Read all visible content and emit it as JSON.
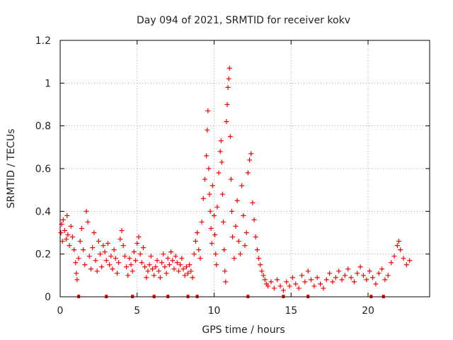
{
  "chart_data": {
    "type": "scatter",
    "title": "Day 094 of 2021, SRMTID for receiver kokv",
    "xlabel": "GPS time / hours",
    "ylabel": "SRMTID / TECUs",
    "xlim": [
      0,
      24
    ],
    "ylim": [
      0,
      1.2
    ],
    "x_ticks": [
      0,
      5,
      10,
      15,
      20
    ],
    "x_tick_labels": [
      "0",
      "5",
      "10",
      "15",
      "20"
    ],
    "y_ticks": [
      0,
      0.2,
      0.4,
      0.6,
      0.8,
      1,
      1.2
    ],
    "y_tick_labels": [
      "0",
      "0.2",
      "0.4",
      "0.6",
      "0.8",
      "1",
      "1.2"
    ],
    "grid": true,
    "marker": "plus",
    "series": [
      {
        "name": "SRMTID",
        "color": "#ff0000",
        "points": [
          [
            0.05,
            0.3
          ],
          [
            0.1,
            0.34
          ],
          [
            0.15,
            0.26
          ],
          [
            0.2,
            0.36
          ],
          [
            0.3,
            0.31
          ],
          [
            0.4,
            0.27
          ],
          [
            0.45,
            0.38
          ],
          [
            0.5,
            0.29
          ],
          [
            0.6,
            0.24
          ],
          [
            0.7,
            0.33
          ],
          [
            0.8,
            0.28
          ],
          [
            0.9,
            0.22
          ],
          [
            1.0,
            0.16
          ],
          [
            1.05,
            0.11
          ],
          [
            1.1,
            0.08
          ],
          [
            1.2,
            0.18
          ],
          [
            1.3,
            0.26
          ],
          [
            1.4,
            0.32
          ],
          [
            1.5,
            0.22
          ],
          [
            1.6,
            0.15
          ],
          [
            1.7,
            0.4
          ],
          [
            1.8,
            0.35
          ],
          [
            1.9,
            0.19
          ],
          [
            2.0,
            0.13
          ],
          [
            2.1,
            0.23
          ],
          [
            2.2,
            0.3
          ],
          [
            2.3,
            0.17
          ],
          [
            2.4,
            0.12
          ],
          [
            2.5,
            0.26
          ],
          [
            2.6,
            0.2
          ],
          [
            2.7,
            0.14
          ],
          [
            2.8,
            0.24
          ],
          [
            2.9,
            0.21
          ],
          [
            3.0,
            0.17
          ],
          [
            3.1,
            0.25
          ],
          [
            3.2,
            0.15
          ],
          [
            3.3,
            0.19
          ],
          [
            3.4,
            0.13
          ],
          [
            3.5,
            0.22
          ],
          [
            3.6,
            0.18
          ],
          [
            3.7,
            0.11
          ],
          [
            3.8,
            0.16
          ],
          [
            3.9,
            0.27
          ],
          [
            4.0,
            0.31
          ],
          [
            4.1,
            0.24
          ],
          [
            4.2,
            0.19
          ],
          [
            4.3,
            0.14
          ],
          [
            4.4,
            0.1
          ],
          [
            4.5,
            0.18
          ],
          [
            4.6,
            0.15
          ],
          [
            4.7,
            0.12
          ],
          [
            4.8,
            0.21
          ],
          [
            4.9,
            0.17
          ],
          [
            5.0,
            0.25
          ],
          [
            5.1,
            0.28
          ],
          [
            5.2,
            0.2
          ],
          [
            5.3,
            0.16
          ],
          [
            5.4,
            0.23
          ],
          [
            5.5,
            0.14
          ],
          [
            5.6,
            0.09
          ],
          [
            5.7,
            0.12
          ],
          [
            5.8,
            0.15
          ],
          [
            5.9,
            0.19
          ],
          [
            6.0,
            0.13
          ],
          [
            6.1,
            0.1
          ],
          [
            6.2,
            0.14
          ],
          [
            6.3,
            0.17
          ],
          [
            6.4,
            0.12
          ],
          [
            6.5,
            0.09
          ],
          [
            6.6,
            0.16
          ],
          [
            6.7,
            0.2
          ],
          [
            6.8,
            0.14
          ],
          [
            6.9,
            0.11
          ],
          [
            7.0,
            0.18
          ],
          [
            7.1,
            0.15
          ],
          [
            7.2,
            0.21
          ],
          [
            7.3,
            0.17
          ],
          [
            7.4,
            0.13
          ],
          [
            7.5,
            0.19
          ],
          [
            7.6,
            0.16
          ],
          [
            7.7,
            0.12
          ],
          [
            7.8,
            0.15
          ],
          [
            7.9,
            0.18
          ],
          [
            8.0,
            0.13
          ],
          [
            8.1,
            0.1
          ],
          [
            8.2,
            0.14
          ],
          [
            8.3,
            0.11
          ],
          [
            8.4,
            0.15
          ],
          [
            8.5,
            0.12
          ],
          [
            8.6,
            0.09
          ],
          [
            8.7,
            0.2
          ],
          [
            8.8,
            0.26
          ],
          [
            8.9,
            0.3
          ],
          [
            9.0,
            0.22
          ],
          [
            9.1,
            0.18
          ],
          [
            9.2,
            0.35
          ],
          [
            9.3,
            0.46
          ],
          [
            9.4,
            0.55
          ],
          [
            9.5,
            0.66
          ],
          [
            9.55,
            0.78
          ],
          [
            9.6,
            0.87
          ],
          [
            9.65,
            0.6
          ],
          [
            9.7,
            0.48
          ],
          [
            9.75,
            0.4
          ],
          [
            9.8,
            0.32
          ],
          [
            9.85,
            0.25
          ],
          [
            9.9,
            0.52
          ],
          [
            10.0,
            0.38
          ],
          [
            10.05,
            0.29
          ],
          [
            10.1,
            0.2
          ],
          [
            10.15,
            0.15
          ],
          [
            10.2,
            0.42
          ],
          [
            10.3,
            0.58
          ],
          [
            10.4,
            0.68
          ],
          [
            10.45,
            0.73
          ],
          [
            10.5,
            0.63
          ],
          [
            10.55,
            0.48
          ],
          [
            10.6,
            0.35
          ],
          [
            10.65,
            0.22
          ],
          [
            10.7,
            0.12
          ],
          [
            10.75,
            0.07
          ],
          [
            10.8,
            0.82
          ],
          [
            10.85,
            0.9
          ],
          [
            10.9,
            0.98
          ],
          [
            10.95,
            1.02
          ],
          [
            11.0,
            1.07
          ],
          [
            11.05,
            0.75
          ],
          [
            11.1,
            0.55
          ],
          [
            11.15,
            0.4
          ],
          [
            11.2,
            0.28
          ],
          [
            11.3,
            0.18
          ],
          [
            11.4,
            0.33
          ],
          [
            11.5,
            0.45
          ],
          [
            11.6,
            0.26
          ],
          [
            11.7,
            0.2
          ],
          [
            11.8,
            0.52
          ],
          [
            11.9,
            0.38
          ],
          [
            12.0,
            0.24
          ],
          [
            12.1,
            0.3
          ],
          [
            12.2,
            0.58
          ],
          [
            12.3,
            0.64
          ],
          [
            12.4,
            0.67
          ],
          [
            12.5,
            0.44
          ],
          [
            12.6,
            0.36
          ],
          [
            12.7,
            0.28
          ],
          [
            12.8,
            0.22
          ],
          [
            12.9,
            0.18
          ],
          [
            13.0,
            0.15
          ],
          [
            13.1,
            0.12
          ],
          [
            13.2,
            0.1
          ],
          [
            13.3,
            0.08
          ],
          [
            13.4,
            0.06
          ],
          [
            13.5,
            0.05
          ],
          [
            13.7,
            0.07
          ],
          [
            13.9,
            0.04
          ],
          [
            14.1,
            0.08
          ],
          [
            14.3,
            0.05
          ],
          [
            14.5,
            0.03
          ],
          [
            14.7,
            0.07
          ],
          [
            14.9,
            0.05
          ],
          [
            15.1,
            0.09
          ],
          [
            15.3,
            0.06
          ],
          [
            15.5,
            0.04
          ],
          [
            15.7,
            0.1
          ],
          [
            15.9,
            0.07
          ],
          [
            16.1,
            0.12
          ],
          [
            16.3,
            0.08
          ],
          [
            16.5,
            0.05
          ],
          [
            16.7,
            0.09
          ],
          [
            16.9,
            0.06
          ],
          [
            17.1,
            0.04
          ],
          [
            17.3,
            0.08
          ],
          [
            17.5,
            0.11
          ],
          [
            17.7,
            0.07
          ],
          [
            17.9,
            0.09
          ],
          [
            18.1,
            0.12
          ],
          [
            18.3,
            0.08
          ],
          [
            18.5,
            0.1
          ],
          [
            18.7,
            0.13
          ],
          [
            18.9,
            0.09
          ],
          [
            19.1,
            0.07
          ],
          [
            19.3,
            0.11
          ],
          [
            19.5,
            0.14
          ],
          [
            19.7,
            0.1
          ],
          [
            19.9,
            0.08
          ],
          [
            20.1,
            0.12
          ],
          [
            20.3,
            0.09
          ],
          [
            20.5,
            0.06
          ],
          [
            20.7,
            0.11
          ],
          [
            20.9,
            0.13
          ],
          [
            21.1,
            0.08
          ],
          [
            21.3,
            0.1
          ],
          [
            21.5,
            0.16
          ],
          [
            21.7,
            0.19
          ],
          [
            21.9,
            0.24
          ],
          [
            22.0,
            0.26
          ],
          [
            22.1,
            0.22
          ],
          [
            22.3,
            0.18
          ],
          [
            22.5,
            0.15
          ],
          [
            22.7,
            0.17
          ]
        ]
      }
    ],
    "gap_markers_x": [
      1.2,
      3.0,
      4.7,
      6.1,
      7.0,
      8.3,
      8.9,
      12.2,
      14.5,
      16.1,
      20.2,
      21.0
    ]
  }
}
